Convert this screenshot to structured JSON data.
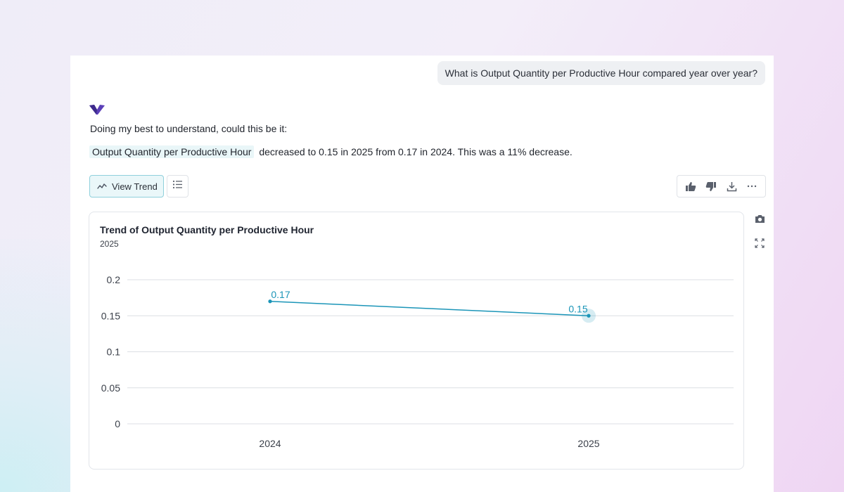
{
  "user_message": "What is Output Quantity per Productive Hour compared year over year?",
  "bot": {
    "logo_icon": "brand-logo-icon",
    "intro": "Doing my best to understand, could this be it:",
    "metric_name": "Output Quantity per Productive Hour",
    "summary": "decreased to 0.15 in 2025 from 0.17 in 2024. This was a 11% decrease."
  },
  "buttons": {
    "view_trend": "View Trend",
    "view_trend_icon": "trend-line-icon",
    "list_icon": "list-icon"
  },
  "actions": [
    "thumbs-up-icon",
    "thumbs-down-icon",
    "download-icon",
    "more-options-icon"
  ],
  "side_tools": [
    "camera-icon",
    "expand-icon"
  ],
  "colors": {
    "accent": "#1b95b8",
    "brand": "#5b3fb8",
    "grid": "#dcdfe4"
  },
  "chart_data": {
    "type": "line",
    "title": "Trend of Output Quantity per Productive Hour",
    "subtitle": "2025",
    "categories": [
      "2024",
      "2025"
    ],
    "values": [
      0.17,
      0.15
    ],
    "data_labels": [
      "0.17",
      "0.15"
    ],
    "y_ticks": [
      0,
      0.05,
      0.1,
      0.15,
      0.2
    ],
    "y_tick_labels": [
      "0",
      "0.05",
      "0.1",
      "0.15",
      "0.2"
    ],
    "ylim": [
      0,
      0.2
    ],
    "xlabel": "",
    "ylabel": "",
    "grid": true,
    "highlighted_point": "2025"
  }
}
